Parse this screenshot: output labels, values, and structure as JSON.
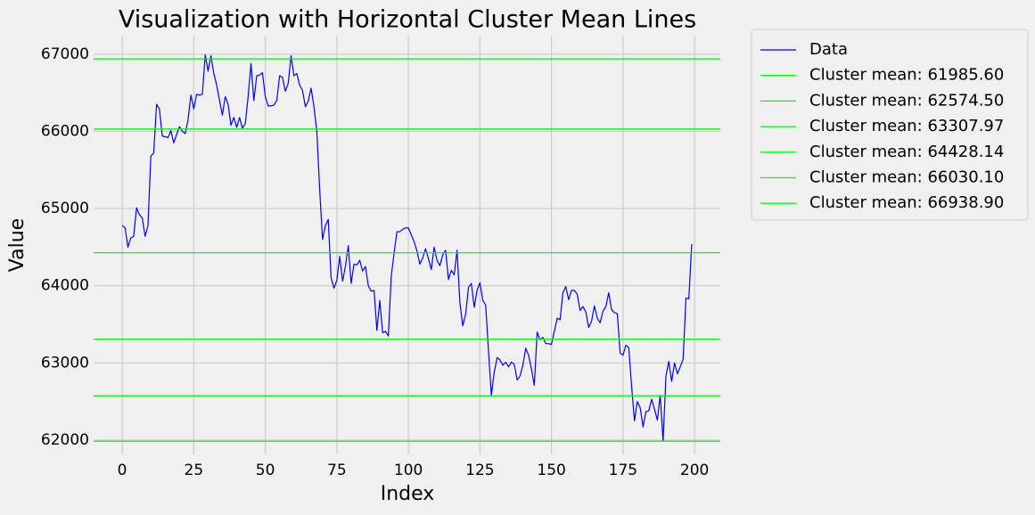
{
  "chart_data": {
    "type": "line",
    "title": "Visualization with Horizontal Cluster Mean Lines",
    "x_label": "Index",
    "y_label": "Value",
    "x": [
      0,
      1,
      2,
      3,
      4,
      5,
      6,
      7,
      8,
      9,
      10,
      11,
      12,
      13,
      14,
      15,
      16,
      17,
      18,
      19,
      20,
      21,
      22,
      23,
      24,
      25,
      26,
      27,
      28,
      29,
      30,
      31,
      32,
      33,
      34,
      35,
      36,
      37,
      38,
      39,
      40,
      41,
      42,
      43,
      44,
      45,
      46,
      47,
      48,
      49,
      50,
      51,
      52,
      53,
      54,
      55,
      56,
      57,
      58,
      59,
      60,
      61,
      62,
      63,
      64,
      65,
      66,
      67,
      68,
      69,
      70,
      71,
      72,
      73,
      74,
      75,
      76,
      77,
      78,
      79,
      80,
      81,
      82,
      83,
      84,
      85,
      86,
      87,
      88,
      89,
      90,
      91,
      92,
      93,
      94,
      95,
      96,
      97,
      98,
      99,
      100,
      101,
      102,
      103,
      104,
      105,
      106,
      107,
      108,
      109,
      110,
      111,
      112,
      113,
      114,
      115,
      116,
      117,
      118,
      119,
      120,
      121,
      122,
      123,
      124,
      125,
      126,
      127,
      128,
      129,
      130,
      131,
      132,
      133,
      134,
      135,
      136,
      137,
      138,
      139,
      140,
      141,
      142,
      143,
      144,
      145,
      146,
      147,
      148,
      149,
      150,
      151,
      152,
      153,
      154,
      155,
      156,
      157,
      158,
      159,
      160,
      161,
      162,
      163,
      164,
      165,
      166,
      167,
      168,
      169,
      170,
      171,
      172,
      173,
      174,
      175,
      176,
      177,
      178,
      179,
      180,
      181,
      182,
      183,
      184,
      185,
      186,
      187,
      188,
      189,
      190,
      191,
      192,
      193,
      194,
      195,
      196,
      197,
      198,
      199
    ],
    "series": [
      {
        "name": "Data",
        "color": "#0000ff",
        "values": [
          64780,
          64750,
          64500,
          64620,
          64640,
          65010,
          64920,
          64880,
          64640,
          64780,
          65680,
          65720,
          66350,
          66290,
          65940,
          65930,
          65920,
          66010,
          65850,
          65960,
          66060,
          66000,
          65970,
          66150,
          66470,
          66290,
          66480,
          66470,
          66480,
          66990,
          66780,
          66980,
          66750,
          66600,
          66400,
          66210,
          66450,
          66350,
          66080,
          66180,
          66050,
          66180,
          66040,
          66100,
          66450,
          66880,
          66400,
          66720,
          66730,
          66760,
          66450,
          66330,
          66330,
          66340,
          66400,
          66720,
          66700,
          66520,
          66620,
          66980,
          66720,
          66750,
          66600,
          66530,
          66320,
          66390,
          66560,
          66320,
          66000,
          65250,
          64600,
          64780,
          64860,
          64100,
          63970,
          64070,
          64380,
          64060,
          64250,
          64520,
          64030,
          64280,
          64270,
          64330,
          64190,
          64250,
          64000,
          63930,
          63940,
          63420,
          63810,
          63390,
          63410,
          63350,
          64120,
          64420,
          64700,
          64700,
          64730,
          64750,
          64750,
          64660,
          64570,
          64450,
          64280,
          64360,
          64480,
          64350,
          64210,
          64500,
          64330,
          64260,
          64400,
          64460,
          64080,
          64200,
          64140,
          64460,
          63780,
          63480,
          63630,
          63980,
          64030,
          63720,
          63940,
          64040,
          63810,
          63750,
          63150,
          62580,
          62880,
          63070,
          63040,
          62970,
          63010,
          62950,
          63010,
          62980,
          62780,
          62830,
          62970,
          63190,
          63100,
          62920,
          62710,
          63400,
          63300,
          63330,
          63250,
          63250,
          63240,
          63410,
          63580,
          63560,
          63910,
          63990,
          63820,
          63940,
          63940,
          63890,
          63680,
          63730,
          63660,
          63460,
          63540,
          63740,
          63580,
          63520,
          63670,
          63730,
          63910,
          63690,
          63650,
          63640,
          63130,
          63100,
          63230,
          63200,
          62700,
          62250,
          62500,
          62420,
          62170,
          62370,
          62380,
          62530,
          62400,
          62260,
          62580,
          61986,
          62830,
          63020,
          62760,
          63000,
          62860,
          62950,
          63050,
          63840,
          63830,
          64540
        ]
      }
    ],
    "hlines": [
      {
        "name": "Cluster mean: 61985.60",
        "value": 61985.6,
        "color": "#00ff00"
      },
      {
        "name": "Cluster mean: 62574.50",
        "value": 62574.5,
        "color": "#00ff00"
      },
      {
        "name": "Cluster mean: 63307.97",
        "value": 63307.97,
        "color": "#00ff00"
      },
      {
        "name": "Cluster mean: 64428.14",
        "value": 64428.14,
        "color": "#00ff00"
      },
      {
        "name": "Cluster mean: 66030.10",
        "value": 66030.1,
        "color": "#00ff00"
      },
      {
        "name": "Cluster mean: 66938.90",
        "value": 66938.9,
        "color": "#00ff00"
      }
    ],
    "xlim": [
      -10,
      209
    ],
    "ylim": [
      61815,
      67240
    ],
    "xticks": [
      0,
      25,
      50,
      75,
      100,
      125,
      150,
      175,
      200
    ],
    "yticks": [
      62000,
      63000,
      64000,
      65000,
      66000,
      67000
    ],
    "grid": true,
    "legend": "outside upper right"
  }
}
